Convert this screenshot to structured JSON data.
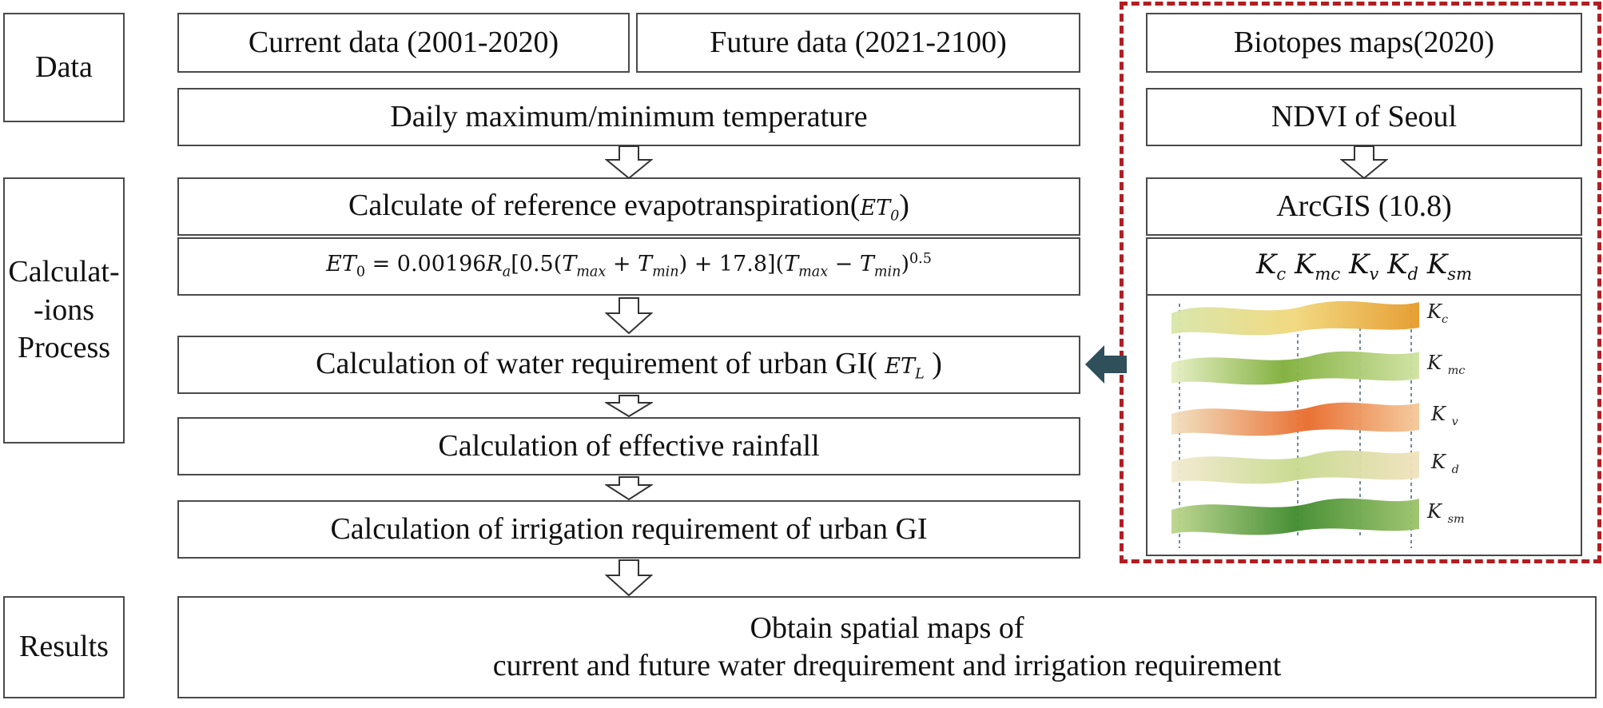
{
  "side_labels": {
    "data": "Data",
    "calc_line1": "Calculat-",
    "calc_line2": "-ions",
    "calc_line3": "Process",
    "results": "Results"
  },
  "data_boxes": {
    "current": "Current data (2001-2020)",
    "future": "Future data (2021-2100)",
    "daily_temp": "Daily maximum/minimum temperature"
  },
  "process_boxes": {
    "ref_et_prefix": "Calculate of reference evapotranspiration(",
    "ref_et_symbol": "ET",
    "ref_et_sub": "0",
    "ref_et_suffix": ")",
    "equation": {
      "lhs": "ET",
      "lhs_sub": "0",
      "eq": " = 0.00196",
      "ra": "R",
      "ra_sub": "a",
      "open": "[0.5(",
      "t": "T",
      "max": "max",
      "plus": " + ",
      "min": "min",
      "mid": ") + 17.8](",
      "minus": " − ",
      "close": ")",
      "exp": "0.5"
    },
    "water_req_prefix": "Calculation of water requirement of urban GI(",
    "water_req_symbol": "ET",
    "water_req_sub": "L",
    "water_req_suffix": ")",
    "effective_rainfall": "Calculation of effective rainfall",
    "irrigation": "Calculation of irrigation requirement of urban GI"
  },
  "results_box": {
    "line1": "Obtain spatial maps of",
    "line2": "current and future water drequirement and irrigation requirement"
  },
  "right_panel": {
    "biotopes": "Biotopes maps(2020)",
    "ndvi": "NDVI of Seoul",
    "arcgis": "ArcGIS (10.8)",
    "coefficients": [
      {
        "k": "K",
        "sub": "c"
      },
      {
        "k": "K",
        "sub": "mc"
      },
      {
        "k": "K",
        "sub": "v"
      },
      {
        "k": "K",
        "sub": "d"
      },
      {
        "k": "K",
        "sub": "sm"
      }
    ],
    "layer_labels": [
      {
        "k": "K",
        "sub": "c"
      },
      {
        "k": "K",
        "sub": "mc"
      },
      {
        "k": "K",
        "sub": "v"
      },
      {
        "k": "K",
        "sub": "d"
      },
      {
        "k": "K",
        "sub": "sm"
      }
    ]
  },
  "colors": {
    "border": "#4a4a4a",
    "dashed_frame": "#b01e22",
    "connector_arrow": "#2f4f5a"
  }
}
